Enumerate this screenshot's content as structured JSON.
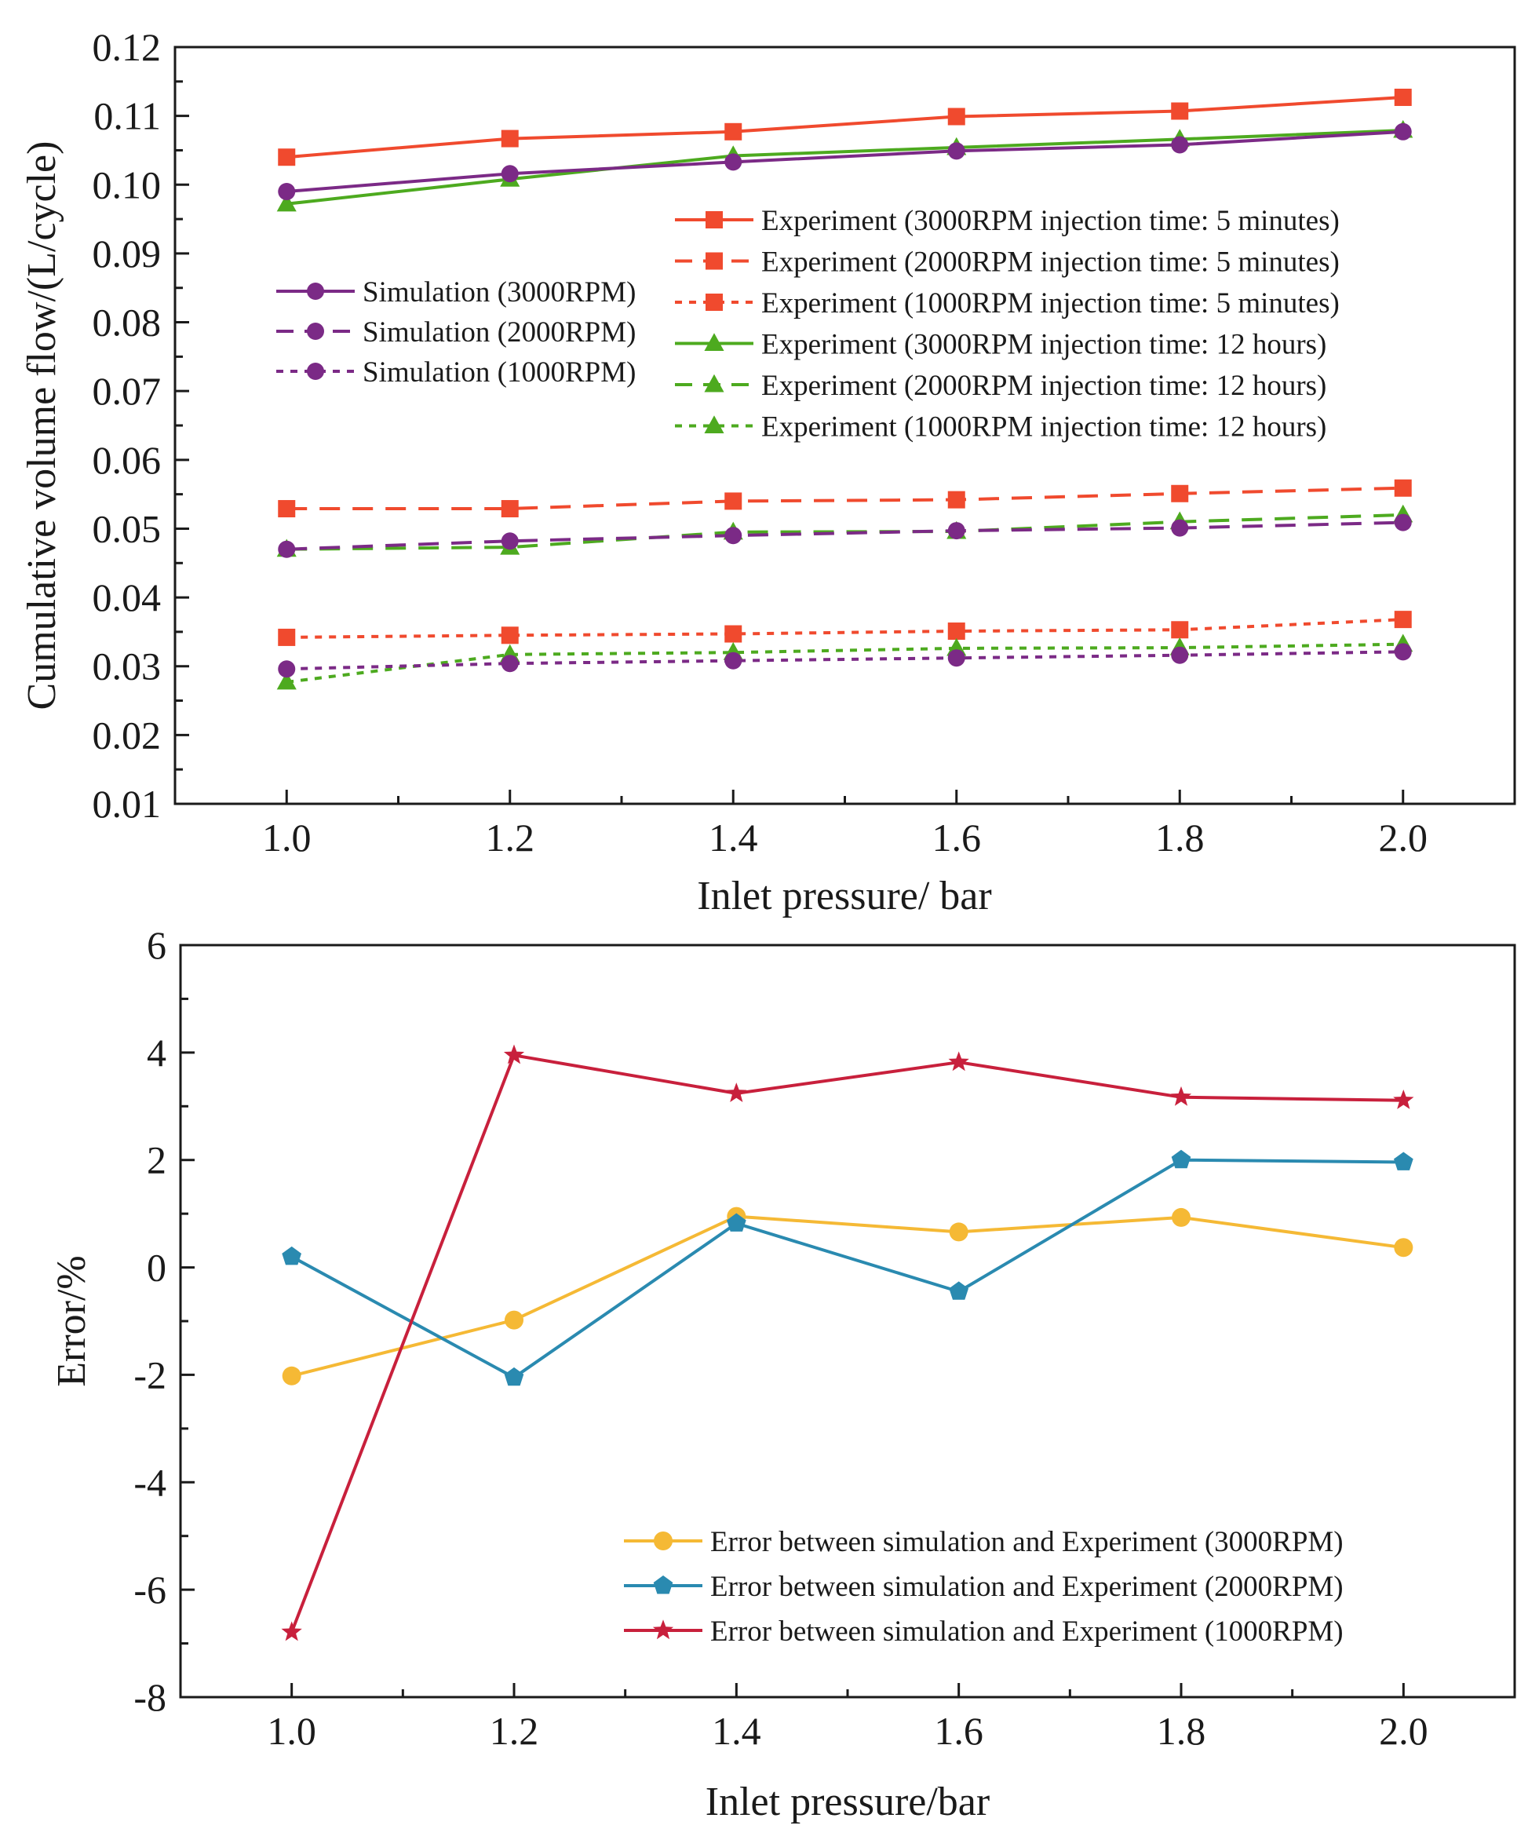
{
  "chart_data": [
    {
      "type": "line",
      "title": "",
      "xlabel": "Inlet pressure/ bar",
      "ylabel": "Cumulative volume flow/(L/cycle)",
      "xlim": [
        0.9,
        2.1
      ],
      "ylim": [
        0.01,
        0.12
      ],
      "x": [
        1.0,
        1.2,
        1.4,
        1.6,
        1.8,
        2.0
      ],
      "x_ticks": [
        "1.0",
        "1.2",
        "1.4",
        "1.6",
        "1.8",
        "2.0"
      ],
      "y_ticks": [
        "0.01",
        "0.02",
        "0.03",
        "0.04",
        "0.05",
        "0.06",
        "0.07",
        "0.08",
        "0.09",
        "0.10",
        "0.11",
        "0.12"
      ],
      "grid": false,
      "series": [
        {
          "name": "Experiment (3000RPM injection time: 5 minutes)",
          "color": "#f04a2e",
          "marker": "square",
          "dash": "solid",
          "values": [
            0.104,
            0.1067,
            0.1077,
            0.1099,
            0.1107,
            0.1127
          ]
        },
        {
          "name": "Experiment (2000RPM injection time: 5 minutes)",
          "color": "#f04a2e",
          "marker": "square",
          "dash": "dashed",
          "values": [
            0.0529,
            0.0529,
            0.054,
            0.0542,
            0.0551,
            0.0559
          ]
        },
        {
          "name": "Experiment (1000RPM injection time: 5 minutes)",
          "color": "#f04a2e",
          "marker": "square",
          "dash": "dotted",
          "values": [
            0.0342,
            0.0345,
            0.0347,
            0.0351,
            0.0353,
            0.0368
          ]
        },
        {
          "name": "Experiment (3000RPM injection time: 12  hours)",
          "color": "#4daa1f",
          "marker": "triangle",
          "dash": "solid",
          "values": [
            0.0972,
            0.1008,
            0.1042,
            0.1054,
            0.1066,
            0.1079
          ]
        },
        {
          "name": "Experiment (2000RPM injection time: 12  hours)",
          "color": "#4daa1f",
          "marker": "triangle",
          "dash": "dashed",
          "values": [
            0.047,
            0.0473,
            0.0495,
            0.0496,
            0.051,
            0.052
          ]
        },
        {
          "name": "Experiment (1000RPM injection time: 12  hours)",
          "color": "#4daa1f",
          "marker": "triangle",
          "dash": "dotted",
          "values": [
            0.0277,
            0.0317,
            0.032,
            0.0326,
            0.0327,
            0.0332
          ]
        },
        {
          "name": "Simulation (3000RPM)",
          "color": "#7b2a86",
          "marker": "circle",
          "dash": "solid",
          "values": [
            0.099,
            0.1016,
            0.1033,
            0.1049,
            0.1058,
            0.1077
          ]
        },
        {
          "name": "Simulation (2000RPM)",
          "color": "#7b2a86",
          "marker": "circle",
          "dash": "dashed",
          "values": [
            0.047,
            0.0482,
            0.049,
            0.0497,
            0.0501,
            0.0509
          ]
        },
        {
          "name": "Simulation (1000RPM)",
          "color": "#7b2a86",
          "marker": "circle",
          "dash": "dotted",
          "values": [
            0.0296,
            0.0304,
            0.0308,
            0.0312,
            0.0316,
            0.0321
          ]
        }
      ],
      "legends": [
        {
          "position": "upper-left",
          "entries": [
            "Simulation (3000RPM)",
            "Simulation (2000RPM)",
            "Simulation (1000RPM)"
          ]
        },
        {
          "position": "upper-right",
          "entries": [
            "Experiment (3000RPM injection time: 5 minutes)",
            "Experiment (2000RPM injection time: 5 minutes)",
            "Experiment (1000RPM injection time: 5 minutes)",
            "Experiment (3000RPM injection time: 12  hours)",
            "Experiment (2000RPM injection time: 12  hours)",
            "Experiment (1000RPM injection time: 12  hours)"
          ]
        }
      ]
    },
    {
      "type": "line",
      "title": "",
      "xlabel": "Inlet pressure/bar",
      "ylabel": "Error/%",
      "xlim": [
        0.9,
        2.1
      ],
      "ylim": [
        -8,
        6
      ],
      "x": [
        1.0,
        1.2,
        1.4,
        1.6,
        1.8,
        2.0
      ],
      "x_ticks": [
        "1.0",
        "1.2",
        "1.4",
        "1.6",
        "1.8",
        "2.0"
      ],
      "y_ticks": [
        "-8",
        "-6",
        "-4",
        "-2",
        "0",
        "2",
        "4",
        "6"
      ],
      "grid": false,
      "series": [
        {
          "name": "Error between simulation and Experiment (3000RPM)",
          "color": "#f5b935",
          "marker": "circle",
          "dash": "solid",
          "values": [
            -2.02,
            -0.98,
            0.95,
            0.66,
            0.93,
            0.37
          ]
        },
        {
          "name": "Error between simulation and Experiment (2000RPM)",
          "color": "#2a8ab0",
          "marker": "pentagon",
          "dash": "solid",
          "values": [
            0.2,
            -2.05,
            0.82,
            -0.45,
            2.0,
            1.96
          ]
        },
        {
          "name": "Error between simulation and Experiment (1000RPM)",
          "color": "#c8203c",
          "marker": "star",
          "dash": "solid",
          "values": [
            -6.79,
            3.95,
            3.24,
            3.82,
            3.17,
            3.11
          ]
        }
      ],
      "legends": [
        {
          "position": "lower-right",
          "entries": [
            "Error between simulation and Experiment (3000RPM)",
            "Error between simulation and Experiment (2000RPM)",
            "Error between simulation and Experiment (1000RPM)"
          ]
        }
      ]
    }
  ]
}
